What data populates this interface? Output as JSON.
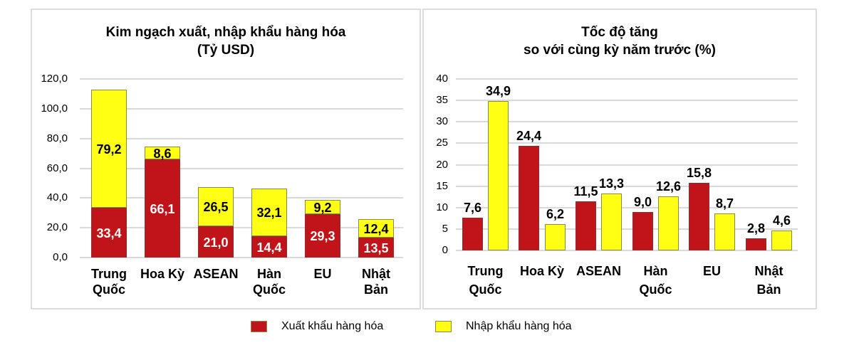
{
  "colors": {
    "export": "#C0141A",
    "import": "#FFFF14",
    "grid": "#d9d9d9",
    "panel_border": "#dcdcdc"
  },
  "left_chart": {
    "title_line1": "Kim ngạch xuất, nhập khẩu hàng hóa",
    "title_line2": "(Tỷ USD)",
    "y_ticks": [
      "120,0",
      "100,0",
      "80,0",
      "60,0",
      "40,0",
      "20,0",
      "0,0"
    ],
    "categories": [
      {
        "line1": "Trung",
        "line2": "Quốc",
        "export_label": "33,4",
        "import_label": "79,2"
      },
      {
        "line1": "Hoa Kỳ",
        "line2": "",
        "export_label": "66,1",
        "import_label": "8,6"
      },
      {
        "line1": "ASEAN",
        "line2": "",
        "export_label": "21,0",
        "import_label": "26,5"
      },
      {
        "line1": "Hàn",
        "line2": "Quốc",
        "export_label": "14,4",
        "import_label": "32,1"
      },
      {
        "line1": "EU",
        "line2": "",
        "export_label": "29,3",
        "import_label": "9,2"
      },
      {
        "line1": "Nhật",
        "line2": "Bản",
        "export_label": "13,5",
        "import_label": "12,4"
      }
    ]
  },
  "right_chart": {
    "title_line1": "Tốc độ tăng",
    "title_line2": "so với cùng kỳ năm trước (%)",
    "y_ticks": [
      "40",
      "35",
      "30",
      "25",
      "20",
      "15",
      "10",
      "5",
      "0"
    ],
    "categories": [
      {
        "line1": "Trung",
        "line2": "Quốc",
        "export_label": "7,6",
        "import_label": "34,9"
      },
      {
        "line1": "Hoa Kỳ",
        "line2": "",
        "export_label": "24,4",
        "import_label": "6,2"
      },
      {
        "line1": "ASEAN",
        "line2": "",
        "export_label": "11,5",
        "import_label": "13,3"
      },
      {
        "line1": "Hàn",
        "line2": "Quốc",
        "export_label": "9,0",
        "import_label": "12,6"
      },
      {
        "line1": "EU",
        "line2": "",
        "export_label": "15,8",
        "import_label": "8,7"
      },
      {
        "line1": "Nhật",
        "line2": "Bản",
        "export_label": "2,8",
        "import_label": "4,6"
      }
    ]
  },
  "legend": {
    "export_label": "Xuất khẩu hàng hóa",
    "import_label": "Nhập khẩu hàng hóa"
  },
  "chart_data": [
    {
      "type": "bar",
      "stacked": true,
      "title": "Kim ngạch xuất, nhập khẩu hàng hóa (Tỷ USD)",
      "categories": [
        "Trung Quốc",
        "Hoa Kỳ",
        "ASEAN",
        "Hàn Quốc",
        "EU",
        "Nhật Bản"
      ],
      "series": [
        {
          "name": "Xuất khẩu hàng hóa",
          "color": "#C0141A",
          "values": [
            33.4,
            66.1,
            21.0,
            14.4,
            29.3,
            13.5
          ]
        },
        {
          "name": "Nhập khẩu hàng hóa",
          "color": "#FFFF14",
          "values": [
            79.2,
            8.6,
            26.5,
            32.1,
            9.2,
            12.4
          ]
        }
      ],
      "xlabel": "",
      "ylabel": "",
      "ylim": [
        0,
        120
      ],
      "yticks": [
        0,
        20,
        40,
        60,
        80,
        100,
        120
      ],
      "grid": true,
      "legend_position": "bottom"
    },
    {
      "type": "bar",
      "stacked": false,
      "title": "Tốc độ tăng so với cùng kỳ năm trước (%)",
      "categories": [
        "Trung Quốc",
        "Hoa Kỳ",
        "ASEAN",
        "Hàn Quốc",
        "EU",
        "Nhật Bản"
      ],
      "series": [
        {
          "name": "Xuất khẩu hàng hóa",
          "color": "#C0141A",
          "values": [
            7.6,
            24.4,
            11.5,
            9.0,
            15.8,
            2.8
          ]
        },
        {
          "name": "Nhập khẩu hàng hóa",
          "color": "#FFFF14",
          "values": [
            34.9,
            6.2,
            13.3,
            12.6,
            8.7,
            4.6
          ]
        }
      ],
      "xlabel": "",
      "ylabel": "",
      "ylim": [
        0,
        40
      ],
      "yticks": [
        0,
        5,
        10,
        15,
        20,
        25,
        30,
        35,
        40
      ],
      "grid": true,
      "legend_position": "bottom"
    }
  ]
}
